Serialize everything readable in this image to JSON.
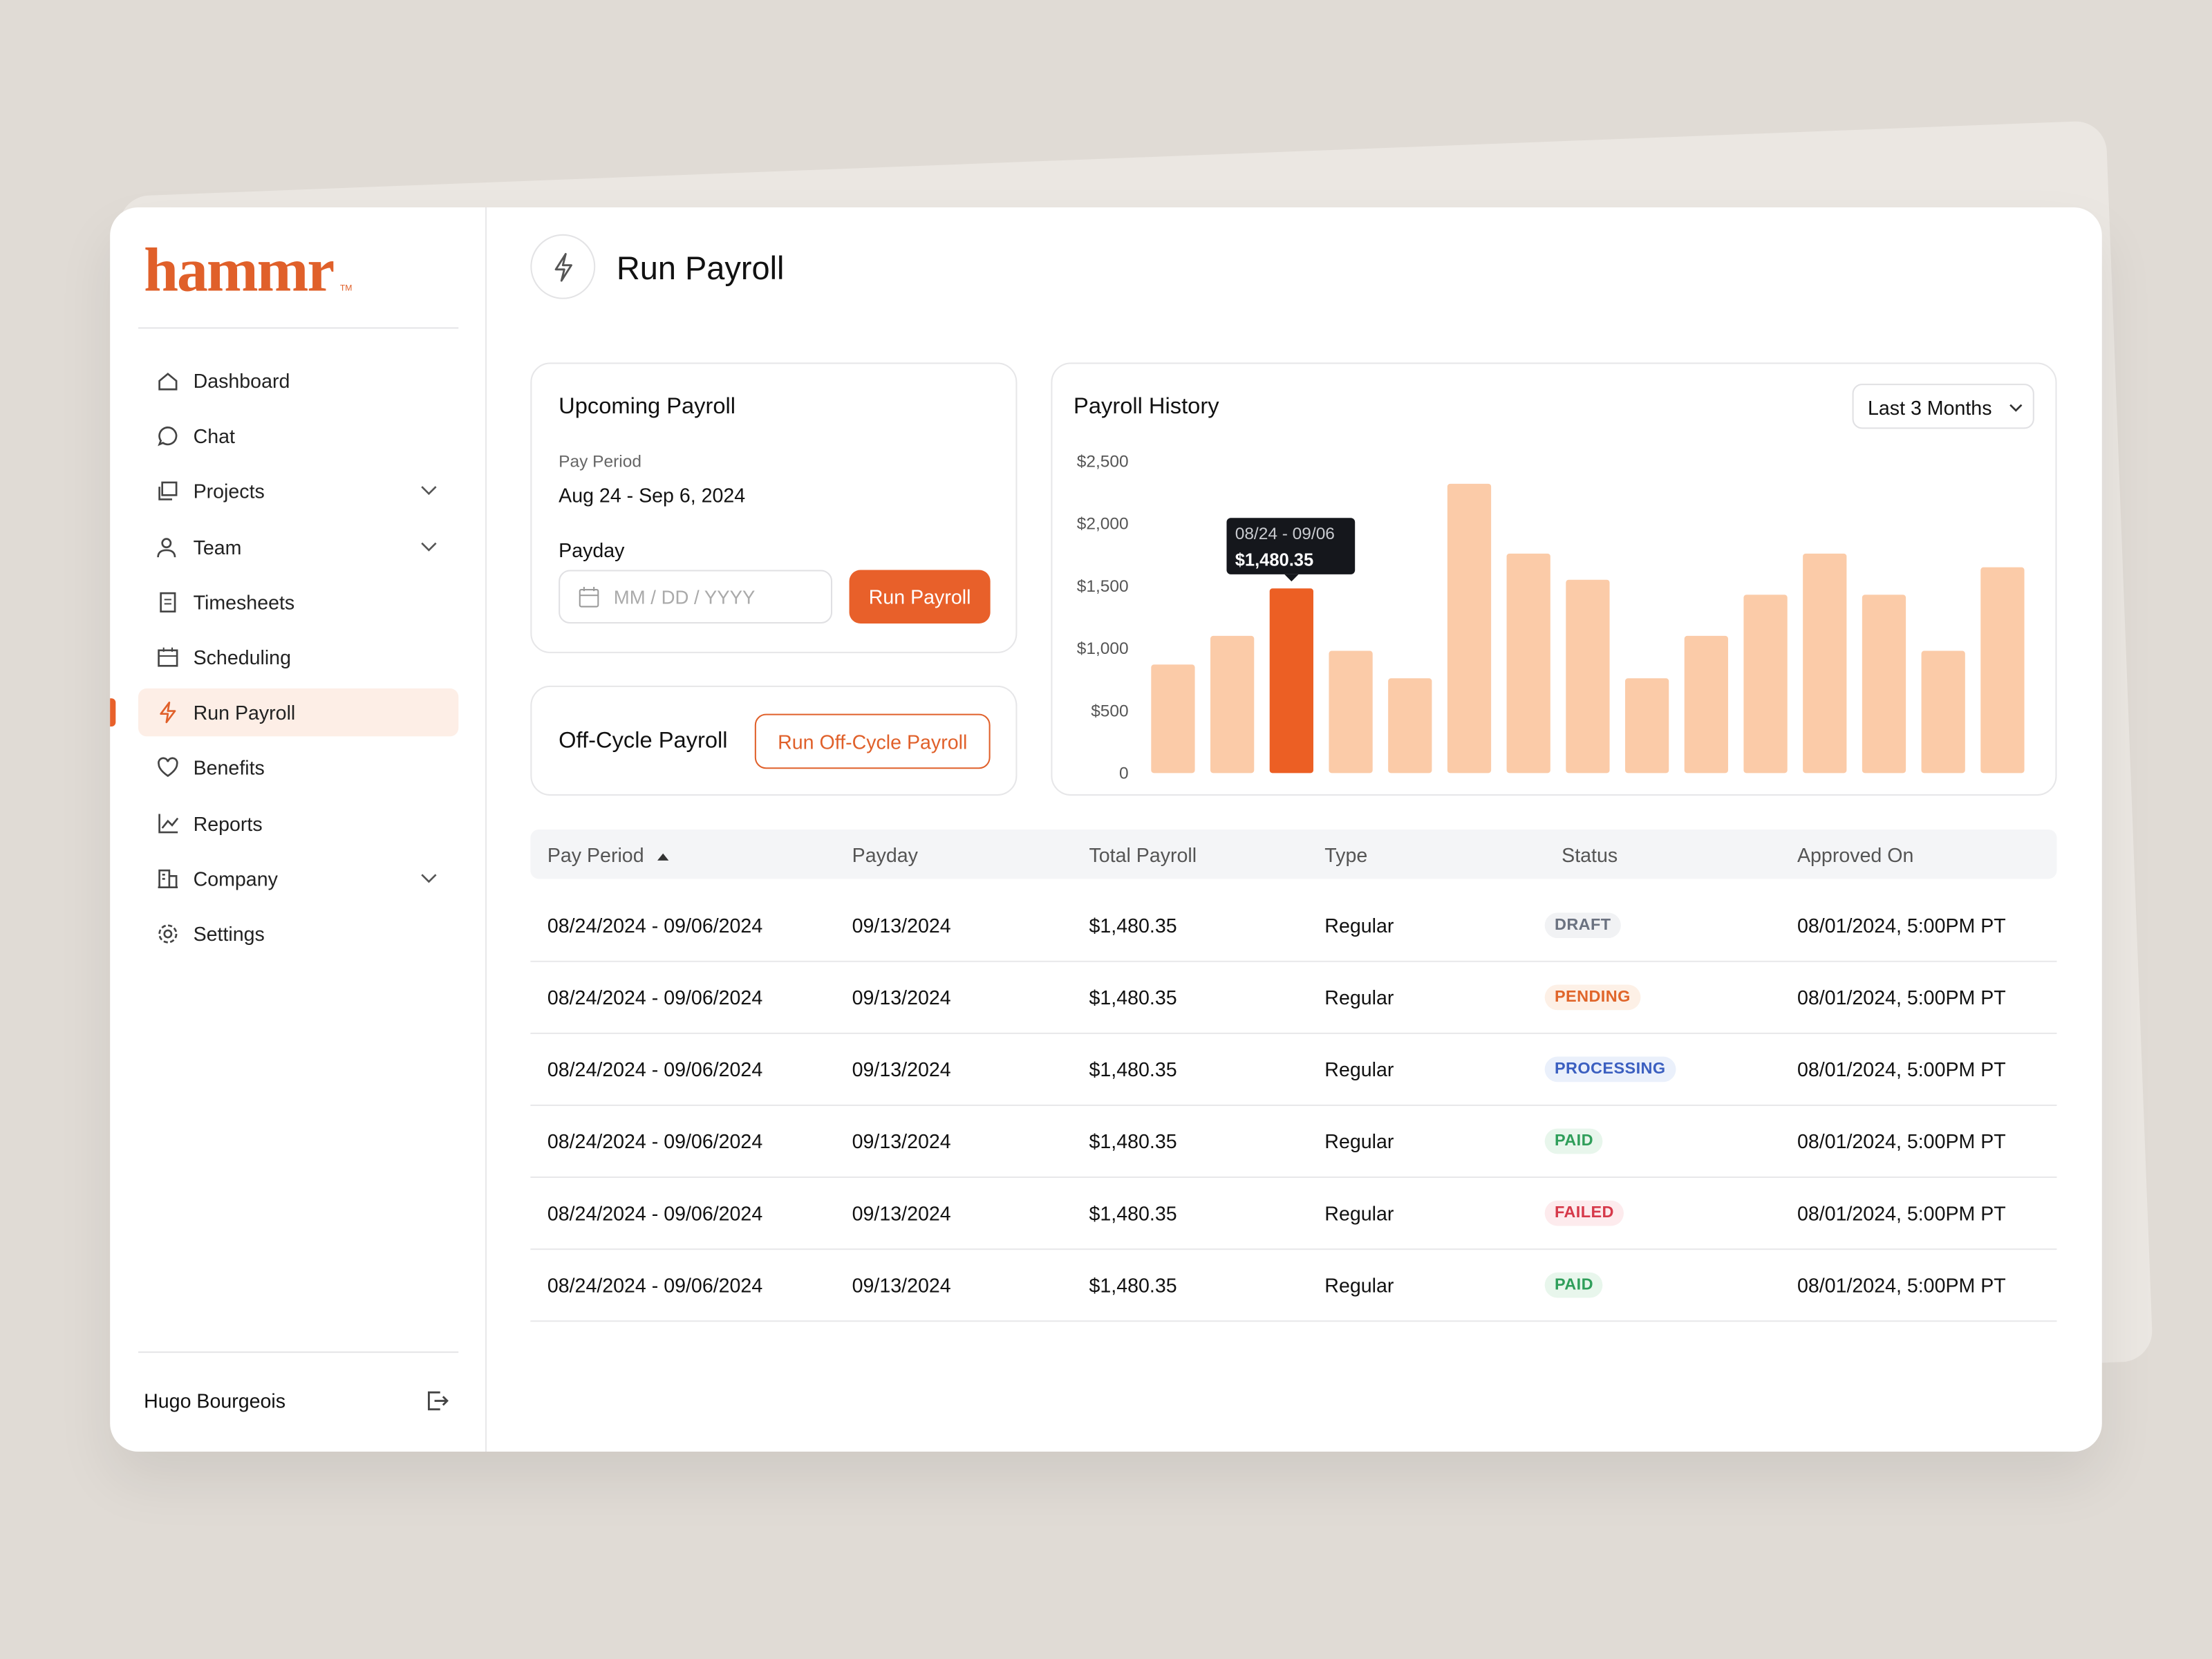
{
  "logo": "hammr",
  "logo_mark": "TM",
  "sidebar": {
    "items": [
      {
        "label": "Dashboard",
        "expandable": false,
        "active": false
      },
      {
        "label": "Chat",
        "expandable": false,
        "active": false
      },
      {
        "label": "Projects",
        "expandable": true,
        "active": false
      },
      {
        "label": "Team",
        "expandable": true,
        "active": false
      },
      {
        "label": "Timesheets",
        "expandable": false,
        "active": false
      },
      {
        "label": "Scheduling",
        "expandable": false,
        "active": false
      },
      {
        "label": "Run Payroll",
        "expandable": false,
        "active": true
      },
      {
        "label": "Benefits",
        "expandable": false,
        "active": false
      },
      {
        "label": "Reports",
        "expandable": false,
        "active": false
      },
      {
        "label": "Company",
        "expandable": true,
        "active": false
      },
      {
        "label": "Settings",
        "expandable": false,
        "active": false
      }
    ],
    "user": "Hugo Bourgeois"
  },
  "header": {
    "title": "Run Payroll"
  },
  "upcoming": {
    "title": "Upcoming Payroll",
    "period_label": "Pay Period",
    "period": "Aug 24 - Sep 6, 2024",
    "payday_label": "Payday",
    "date_placeholder": "MM / DD / YYYY",
    "button": "Run Payroll"
  },
  "off_cycle": {
    "title": "Off-Cycle Payroll",
    "button": "Run Off-Cycle Payroll"
  },
  "chart_data": {
    "type": "bar",
    "title": "Payroll History",
    "range_select": "Last 3 Months",
    "categories": [
      null,
      null,
      "08/24 - 09/06",
      null,
      null,
      null,
      null,
      null,
      null,
      null,
      null,
      null,
      null,
      null,
      null
    ],
    "values": [
      870,
      1100,
      1480.35,
      980,
      760,
      2320,
      1760,
      1550,
      760,
      1100,
      1430,
      1760,
      1430,
      980,
      1650
    ],
    "value_labels": [
      null,
      null,
      "$1,480.35",
      null,
      null,
      null,
      null,
      null,
      null,
      null,
      null,
      null,
      null,
      null,
      null
    ],
    "color": "#fbcba8",
    "highlight_color": "#ec5f24",
    "ylim": [
      0,
      2600
    ],
    "yticks": [
      0,
      {
        "value": 500,
        "label": "$500"
      },
      {
        "value": 1000,
        "label": "$1,000"
      },
      {
        "value": 1500,
        "label": "$1,500"
      },
      {
        "value": 2000,
        "label": "$2,000"
      },
      {
        "value": 2500,
        "label": "$2,500"
      }
    ],
    "grid": false
  },
  "table": {
    "columns": [
      "Pay Period",
      "Payday",
      "Total Payroll",
      "Type",
      "Status",
      "Approved On"
    ],
    "rows": [
      {
        "period": "08/24/2024 - 09/06/2024",
        "payday": "09/13/2024",
        "total": "$1,480.35",
        "type": "Regular",
        "status": {
          "label": "DRAFT",
          "fg": "#6b7280",
          "bg": "#f1f2f4"
        },
        "approved": "08/01/2024, 5:00PM PT"
      },
      {
        "period": "08/24/2024 - 09/06/2024",
        "payday": "09/13/2024",
        "total": "$1,480.35",
        "type": "Regular",
        "status": {
          "label": "PENDING",
          "fg": "#e0652a",
          "bg": "#fdf0e6"
        },
        "approved": "08/01/2024, 5:00PM PT"
      },
      {
        "period": "08/24/2024 - 09/06/2024",
        "payday": "09/13/2024",
        "total": "$1,480.35",
        "type": "Regular",
        "status": {
          "label": "PROCESSING",
          "fg": "#3b5fc0",
          "bg": "#eaf0fb"
        },
        "approved": "08/01/2024, 5:00PM PT"
      },
      {
        "period": "08/24/2024 - 09/06/2024",
        "payday": "09/13/2024",
        "total": "$1,480.35",
        "type": "Regular",
        "status": {
          "label": "PAID",
          "fg": "#2f9e5a",
          "bg": "#e8f6ec"
        },
        "approved": "08/01/2024, 5:00PM PT"
      },
      {
        "period": "08/24/2024 - 09/06/2024",
        "payday": "09/13/2024",
        "total": "$1,480.35",
        "type": "Regular",
        "status": {
          "label": "FAILED",
          "fg": "#d6394a",
          "bg": "#fdebed"
        },
        "approved": "08/01/2024, 5:00PM PT"
      },
      {
        "period": "08/24/2024 - 09/06/2024",
        "payday": "09/13/2024",
        "total": "$1,480.35",
        "type": "Regular",
        "status": {
          "label": "PAID",
          "fg": "#2f9e5a",
          "bg": "#e8f6ec"
        },
        "approved": "08/01/2024, 5:00PM PT"
      }
    ]
  }
}
